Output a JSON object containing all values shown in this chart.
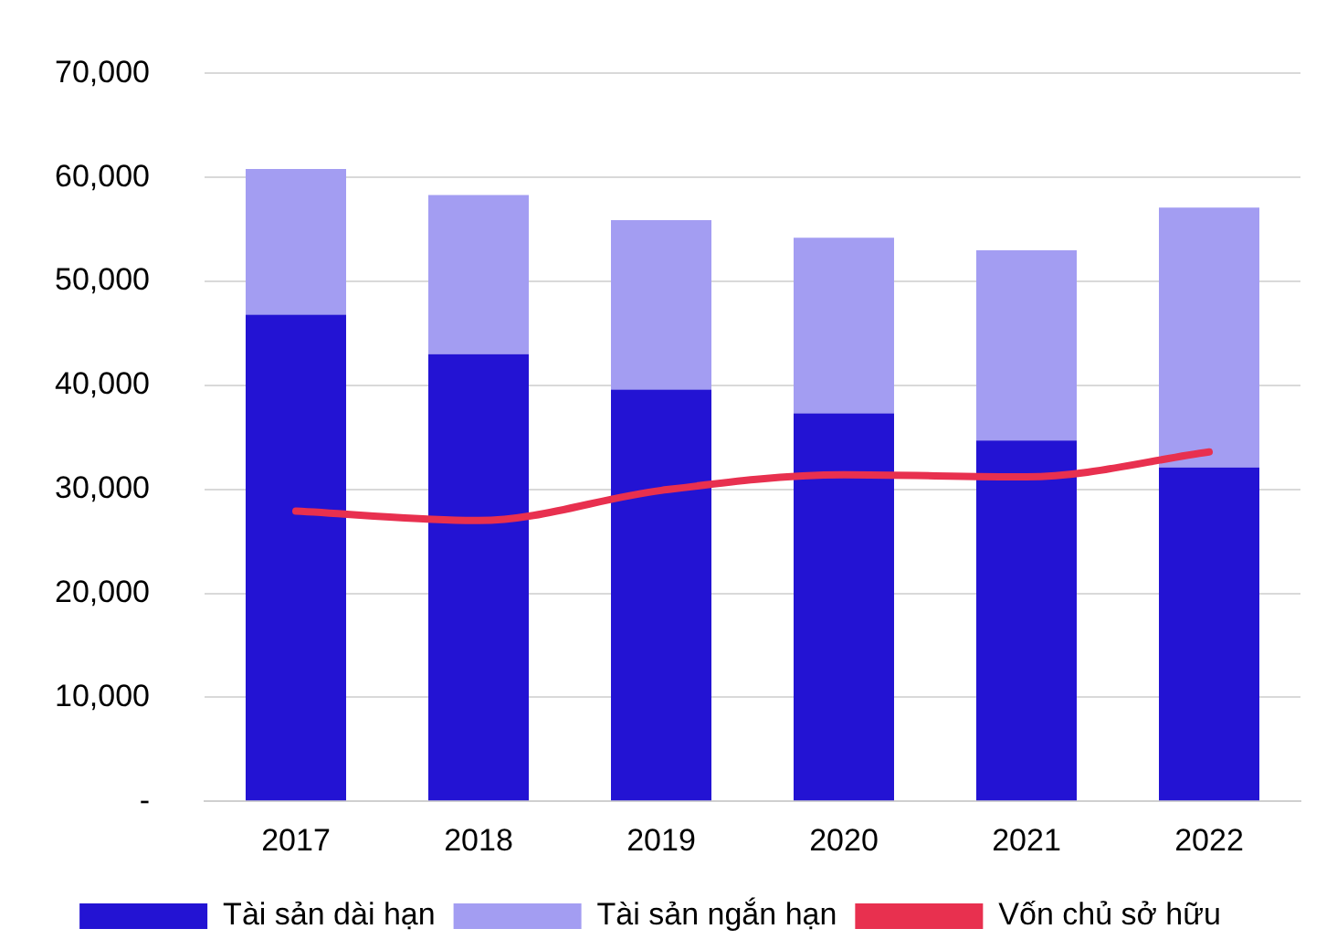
{
  "chart_data": {
    "type": "bar",
    "stacked": true,
    "categories": [
      "2017",
      "2018",
      "2019",
      "2020",
      "2021",
      "2022"
    ],
    "series": [
      {
        "name": "Tài sản dài hạn",
        "color": "#2313d3",
        "values": [
          46800,
          43000,
          39600,
          37300,
          34700,
          32100
        ]
      },
      {
        "name": "Tài sản ngắn hạn",
        "color": "#a39df2",
        "values": [
          14000,
          15300,
          16300,
          16900,
          18300,
          25000
        ]
      },
      {
        "name": "Vốn chủ sở hữu",
        "color": "#e8304f",
        "type": "line",
        "values": [
          27900,
          27000,
          29900,
          31400,
          31200,
          33600
        ]
      }
    ],
    "ylim": [
      0,
      70000
    ],
    "yticks": [
      {
        "value": 0,
        "label": "-"
      },
      {
        "value": 10000,
        "label": "10,000"
      },
      {
        "value": 20000,
        "label": "20,000"
      },
      {
        "value": 30000,
        "label": "30,000"
      },
      {
        "value": 40000,
        "label": "40,000"
      },
      {
        "value": 50000,
        "label": "50,000"
      },
      {
        "value": 60000,
        "label": "60,000"
      },
      {
        "value": 70000,
        "label": "70,000"
      }
    ],
    "grid": "y",
    "legend": "bottom",
    "marker": "none",
    "line_style": "solid"
  }
}
